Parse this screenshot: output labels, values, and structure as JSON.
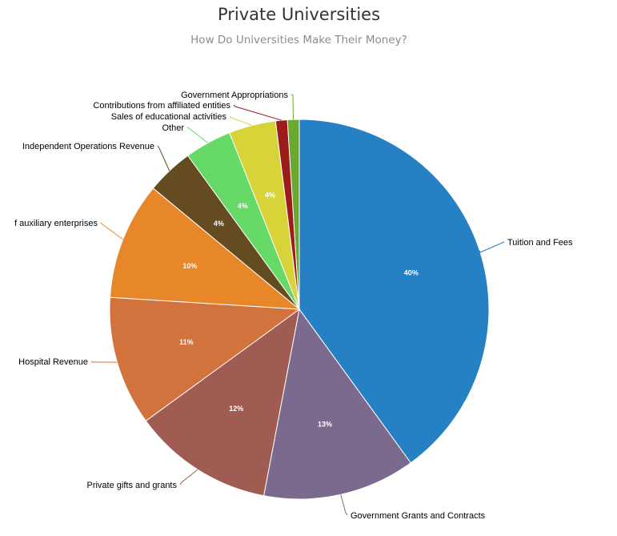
{
  "chart_data": {
    "type": "pie",
    "title": "Private Universities",
    "subtitle": "How Do Universities Make Their Money?",
    "slices": [
      {
        "name": "Tuition and Fees",
        "value": 40,
        "label": "40%",
        "color": "#2581c4"
      },
      {
        "name": "Government Grants and Contracts",
        "value": 13,
        "label": "13%",
        "color": "#7c6a8e"
      },
      {
        "name": "Private gifts and grants",
        "value": 12,
        "label": "12%",
        "color": "#a05c53"
      },
      {
        "name": "Hospital Revenue",
        "value": 11,
        "label": "11%",
        "color": "#d2723c"
      },
      {
        "name": "Sales and services of auxiliary enterprises",
        "display_name": "f auxiliary enterprises",
        "value": 10,
        "label": "10%",
        "color": "#e8862a"
      },
      {
        "name": "Independent Operations Revenue",
        "value": 4,
        "label": "4%",
        "color": "#654c20"
      },
      {
        "name": "Other",
        "value": 4,
        "label": "4%",
        "color": "#66d967"
      },
      {
        "name": "Sales of educational activities",
        "value": 4,
        "label": "4%",
        "color": "#d9d33a"
      },
      {
        "name": "Contributions from affiliated entities",
        "value": 1,
        "label": "",
        "color": "#9c1c1c"
      },
      {
        "name": "Government Appropriations",
        "value": 1,
        "label": "",
        "color": "#6aa832"
      }
    ]
  }
}
